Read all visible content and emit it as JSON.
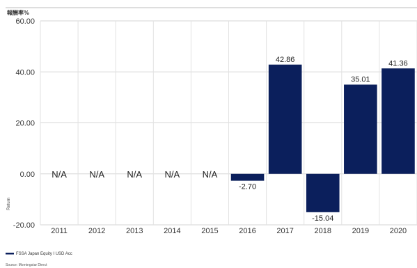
{
  "chart_data": {
    "type": "bar",
    "title": "報酬率%",
    "ylabel": "Return",
    "xlabel": "",
    "categories": [
      "2011",
      "2012",
      "2013",
      "2014",
      "2015",
      "2016",
      "2017",
      "2018",
      "2019",
      "2020"
    ],
    "series": [
      {
        "name": "FSSA Japan Equity I USD Acc",
        "values": [
          null,
          null,
          null,
          null,
          null,
          -2.7,
          42.86,
          -15.04,
          35.01,
          41.36
        ],
        "color": "#0b1f5c"
      }
    ],
    "data_labels": [
      "N/A",
      "N/A",
      "N/A",
      "N/A",
      "N/A",
      "-2.70",
      "42.86",
      "-15.04",
      "35.01",
      "41.36"
    ],
    "y_ticks": [
      "60.00",
      "40.00",
      "20.00",
      "0.00",
      "-20.00"
    ],
    "ylim": [
      -20,
      60
    ],
    "grid": true,
    "legend_position": "bottom-left",
    "source": "Source: Morningstar Direct"
  }
}
